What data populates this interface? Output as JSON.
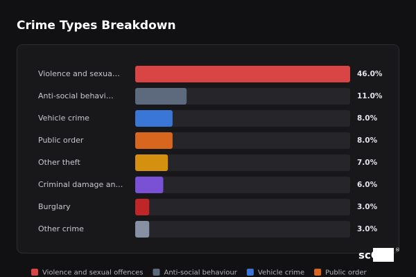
{
  "chart_data": {
    "type": "hbar",
    "title": "Crime Types Breakdown",
    "categories": [
      "Violence and sexua…",
      "Anti-social behavi…",
      "Vehicle crime",
      "Public order",
      "Other theft",
      "Criminal damage an…",
      "Burglary",
      "Other crime"
    ],
    "values": [
      46,
      11,
      8,
      8,
      7,
      6,
      3,
      3
    ],
    "value_labels": [
      "46.0%",
      "11.0%",
      "8.0%",
      "8.0%",
      "7.0%",
      "6.0%",
      "3.0%",
      "3.0%"
    ],
    "colors": [
      "#d94545",
      "#5d6a7e",
      "#3a76d6",
      "#d8661e",
      "#d4900e",
      "#7a50d4",
      "#c02628",
      "#8891a3"
    ],
    "xlim": [
      0,
      46
    ],
    "legend": [
      "Violence and sexual offences",
      "Anti-social behaviour",
      "Vehicle crime",
      "Public order"
    ],
    "watermark": "scOS"
  }
}
